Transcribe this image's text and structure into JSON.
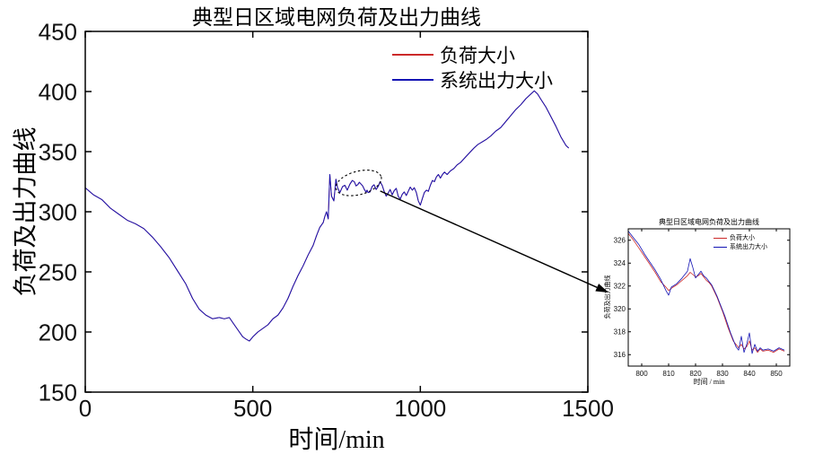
{
  "figure": {
    "background": "#ffffff"
  },
  "chart_data": [
    {
      "id": "main",
      "type": "line",
      "title": "典型日区域电网负荷及出力曲线",
      "xlabel": "时间/min",
      "ylabel": "负荷及出力曲线",
      "xlim": [
        0,
        1500
      ],
      "ylim": [
        150,
        450
      ],
      "xticks": [
        0,
        500,
        1000,
        1500
      ],
      "yticks": [
        150,
        200,
        250,
        300,
        350,
        400,
        450
      ],
      "grid": false,
      "legend_position": "top-right-inside",
      "x": [
        0,
        25,
        50,
        75,
        100,
        125,
        150,
        175,
        200,
        225,
        250,
        275,
        300,
        320,
        340,
        360,
        380,
        400,
        415,
        430,
        445,
        460,
        470,
        480,
        490,
        500,
        515,
        530,
        545,
        560,
        575,
        590,
        605,
        620,
        635,
        650,
        665,
        680,
        690,
        700,
        710,
        715,
        720,
        725,
        730,
        735,
        742,
        748,
        753,
        760,
        768,
        775,
        782,
        790,
        797,
        803,
        808,
        813,
        818,
        823,
        828,
        833,
        838,
        841,
        844,
        850,
        856,
        862,
        868,
        874,
        880,
        886,
        892,
        898,
        904,
        910,
        916,
        922,
        928,
        934,
        940,
        946,
        952,
        958,
        964,
        970,
        976,
        982,
        988,
        994,
        1000,
        1006,
        1012,
        1018,
        1024,
        1030,
        1036,
        1042,
        1048,
        1054,
        1060,
        1066,
        1072,
        1080,
        1090,
        1100,
        1110,
        1120,
        1130,
        1140,
        1150,
        1160,
        1172,
        1184,
        1196,
        1210,
        1225,
        1240,
        1255,
        1270,
        1285,
        1300,
        1315,
        1330,
        1340,
        1350,
        1360,
        1375,
        1390,
        1405,
        1420,
        1435,
        1443
      ],
      "series": [
        {
          "name": "负荷大小",
          "color": "#cc2929",
          "y": [
            320,
            314,
            310,
            303,
            298,
            293,
            290,
            286,
            279,
            271,
            262,
            251,
            240,
            228,
            219,
            214,
            211,
            212,
            211,
            212,
            206,
            200,
            196,
            194,
            192.5,
            196,
            200,
            203,
            206,
            211,
            214,
            220,
            228,
            238,
            247,
            255,
            264,
            272,
            280,
            287,
            291,
            296,
            300,
            294,
            331,
            313,
            309,
            327,
            320,
            316,
            321,
            322,
            318,
            323,
            326,
            325,
            321.5,
            322.5,
            324.5,
            323,
            321.5,
            318.5,
            316.3,
            318,
            316,
            316.5,
            321,
            322.5,
            318.5,
            321,
            325,
            322,
            317,
            313,
            315.5,
            318.5,
            314,
            317.5,
            319.5,
            313,
            310.5,
            314.5,
            316.5,
            313.5,
            317,
            320.5,
            318,
            320,
            316,
            309,
            305.5,
            311,
            316,
            318,
            317,
            322,
            326,
            325,
            329,
            331,
            328,
            331,
            333,
            331,
            334,
            336,
            339,
            341,
            344,
            347,
            350,
            353,
            356,
            358,
            360,
            363,
            367,
            370,
            375,
            380,
            385,
            389,
            394,
            398,
            400.5,
            398,
            393.5,
            387,
            379,
            371,
            362,
            355,
            353
          ]
        },
        {
          "name": "系统出力大小",
          "color": "#1414b4",
          "y": [
            320,
            314,
            310,
            303,
            298,
            293,
            290,
            286,
            279,
            271,
            262,
            251,
            240,
            228,
            219,
            214,
            211,
            212,
            211,
            212,
            206,
            200,
            196,
            194,
            192.5,
            196,
            200,
            203,
            206,
            211,
            214,
            220,
            228,
            238,
            247,
            255,
            264,
            272,
            280,
            287,
            291,
            296,
            300,
            294,
            331,
            313,
            309,
            327,
            320,
            316,
            321,
            322,
            318,
            323,
            326,
            325,
            321.5,
            322.5,
            324.5,
            323,
            321.5,
            318.5,
            316.3,
            318,
            316,
            316.5,
            321,
            322.5,
            318.5,
            321,
            325,
            322,
            317,
            313,
            315.5,
            318.5,
            314,
            317.5,
            319.5,
            313,
            310.5,
            314.5,
            316.5,
            313.5,
            317,
            320.5,
            318,
            320,
            316,
            309,
            305.5,
            311,
            316,
            318,
            317,
            322,
            326,
            325,
            329,
            331,
            328,
            331,
            333,
            331,
            334,
            336,
            339,
            341,
            344,
            347,
            350,
            353,
            356,
            358,
            360,
            363,
            367,
            370,
            375,
            380,
            385,
            389,
            394,
            398,
            400.5,
            398,
            393.5,
            387,
            379,
            371,
            362,
            355,
            353
          ]
        }
      ],
      "annotation": {
        "style": "dotted-ellipse-with-arrow-to-inset",
        "circle_data_x": 816,
        "circle_data_y": 324
      }
    },
    {
      "id": "inset",
      "type": "line",
      "title": "典型日区域电网负荷及出力曲线",
      "xlabel": "时间 / min",
      "ylabel": "负荷及出力曲线",
      "xlim": [
        795,
        855
      ],
      "ylim": [
        315,
        327
      ],
      "xticks": [
        800,
        810,
        820,
        830,
        840,
        850
      ],
      "yticks": [
        316,
        318,
        320,
        322,
        324,
        326
      ],
      "grid": false,
      "legend_position": "top-right-inside",
      "x": [
        795,
        797,
        799,
        801,
        803,
        805,
        807,
        809,
        810,
        811,
        813,
        815,
        817,
        818,
        819,
        820,
        821,
        822,
        823,
        824,
        825,
        826,
        827,
        828,
        829,
        830,
        831,
        832,
        833,
        834,
        835,
        836,
        837,
        838,
        839,
        840,
        841,
        842,
        843,
        844,
        845,
        847,
        849,
        851,
        853
      ],
      "series": [
        {
          "name": "负荷大小",
          "color": "#cc2929",
          "y": [
            326.6,
            326.0,
            325.3,
            324.6,
            323.9,
            323.2,
            322.4,
            321.9,
            321.6,
            321.8,
            322.1,
            322.5,
            322.9,
            323.2,
            323.0,
            322.8,
            322.9,
            323.1,
            322.8,
            322.5,
            322.3,
            322.0,
            321.5,
            321.0,
            320.4,
            319.8,
            319.1,
            318.4,
            317.8,
            317.2,
            316.9,
            316.6,
            316.9,
            316.5,
            316.7,
            317.2,
            316.4,
            316.6,
            316.2,
            316.5,
            316.3,
            316.4,
            316.2,
            316.5,
            316.3
          ]
        },
        {
          "name": "系统出力大小",
          "color": "#1414b4",
          "y": [
            326.8,
            326.2,
            325.6,
            324.8,
            324.1,
            323.4,
            322.6,
            321.6,
            321.2,
            321.9,
            322.2,
            322.7,
            323.3,
            324.4,
            323.6,
            322.7,
            323.0,
            323.3,
            322.9,
            322.7,
            322.4,
            322.1,
            321.6,
            321.1,
            320.5,
            319.9,
            319.3,
            318.6,
            317.9,
            317.3,
            316.7,
            316.4,
            317.6,
            316.2,
            316.9,
            317.9,
            316.1,
            316.9,
            316.3,
            316.6,
            316.4,
            316.5,
            316.3,
            316.6,
            316.4
          ]
        }
      ]
    }
  ]
}
